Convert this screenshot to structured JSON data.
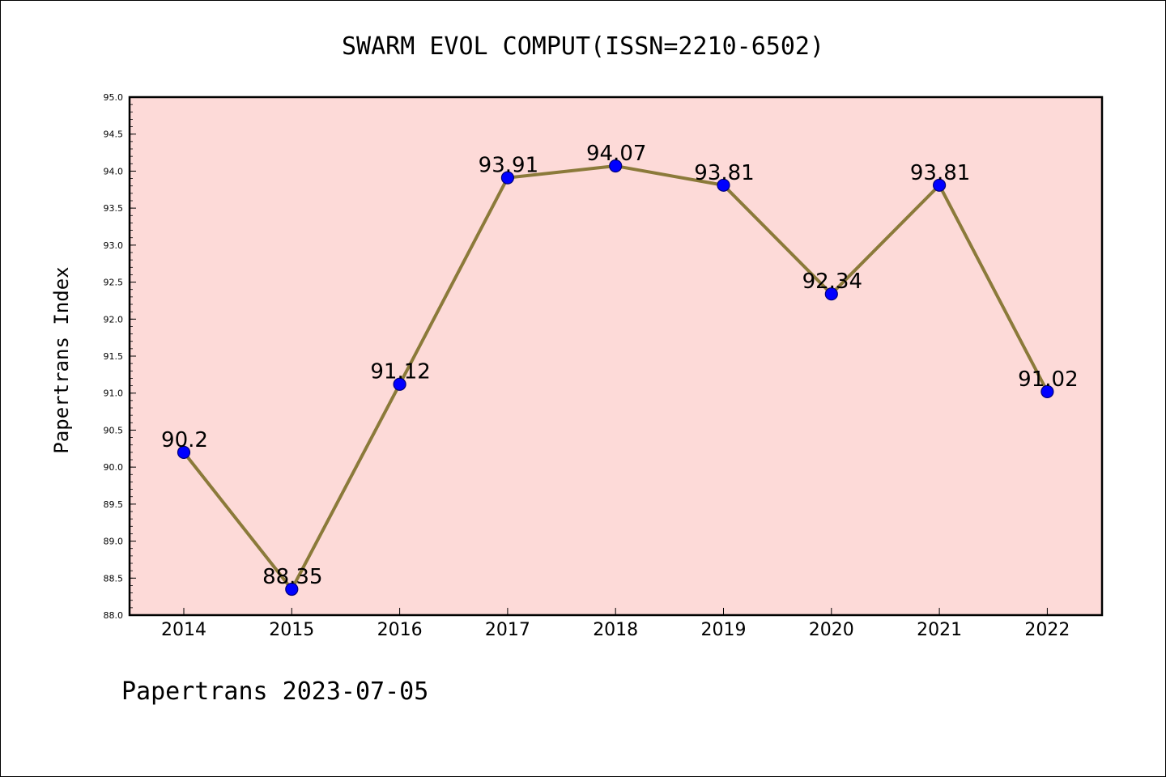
{
  "chart_data": {
    "type": "line",
    "title": "SWARM EVOL COMPUT(ISSN=2210-6502)",
    "ylabel": "Papertrans Index",
    "xlabel": "",
    "categories": [
      "2014",
      "2015",
      "2016",
      "2017",
      "2018",
      "2019",
      "2020",
      "2021",
      "2022"
    ],
    "series": [
      {
        "values": [
          90.2,
          88.35,
          91.12,
          93.91,
          94.07,
          93.81,
          92.34,
          93.81,
          91.02
        ],
        "labels": [
          "90.2",
          "88.35",
          "91.12",
          "93.91",
          "94.07",
          "93.81",
          "92.34",
          "93.81",
          "91.02"
        ]
      }
    ],
    "ylim": [
      88.0,
      95.0
    ],
    "yticks": [
      "88.0",
      "88.5",
      "89.0",
      "89.5",
      "90.0",
      "90.5",
      "91.0",
      "91.5",
      "92.0",
      "92.5",
      "93.0",
      "93.5",
      "94.0",
      "94.5",
      "95.0"
    ],
    "grid": false,
    "colors": {
      "plot_background": "#fddad8",
      "line": "#8b7a3a",
      "marker": "#0000ff",
      "marker_edge": "#00007a"
    }
  },
  "footer": "Papertrans 2023-07-05"
}
